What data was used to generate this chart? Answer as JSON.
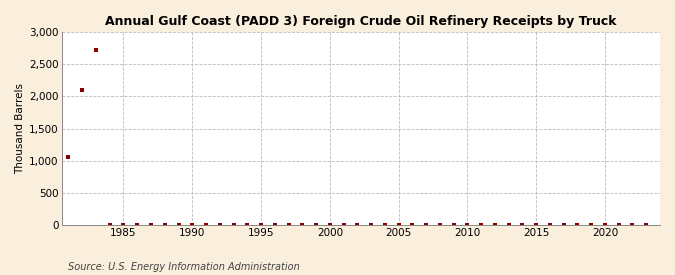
{
  "title": "Annual Gulf Coast (PADD 3) Foreign Crude Oil Refinery Receipts by Truck",
  "ylabel": "Thousand Barrels",
  "source": "Source: U.S. Energy Information Administration",
  "background_color": "#faeedd",
  "plot_background_color": "#ffffff",
  "grid_color": "#bbbbbb",
  "marker_color": "#8b0000",
  "years": [
    1981,
    1982,
    1983,
    1984,
    1985,
    1986,
    1987,
    1988,
    1989,
    1990,
    1991,
    1992,
    1993,
    1994,
    1995,
    1996,
    1997,
    1998,
    1999,
    2000,
    2001,
    2002,
    2003,
    2004,
    2005,
    2006,
    2007,
    2008,
    2009,
    2010,
    2011,
    2012,
    2013,
    2014,
    2015,
    2016,
    2017,
    2018,
    2019,
    2020,
    2021,
    2022,
    2023
  ],
  "values": [
    1060,
    2100,
    2720,
    5,
    0,
    0,
    0,
    0,
    0,
    0,
    0,
    0,
    0,
    0,
    0,
    0,
    0,
    0,
    0,
    0,
    0,
    0,
    0,
    0,
    2,
    2,
    2,
    2,
    2,
    2,
    2,
    2,
    2,
    2,
    2,
    2,
    2,
    2,
    2,
    2,
    2,
    2,
    2
  ],
  "ylim": [
    0,
    3000
  ],
  "yticks": [
    0,
    500,
    1000,
    1500,
    2000,
    2500,
    3000
  ],
  "xlim": [
    1980.5,
    2024
  ],
  "xticks": [
    1985,
    1990,
    1995,
    2000,
    2005,
    2010,
    2015,
    2020
  ]
}
